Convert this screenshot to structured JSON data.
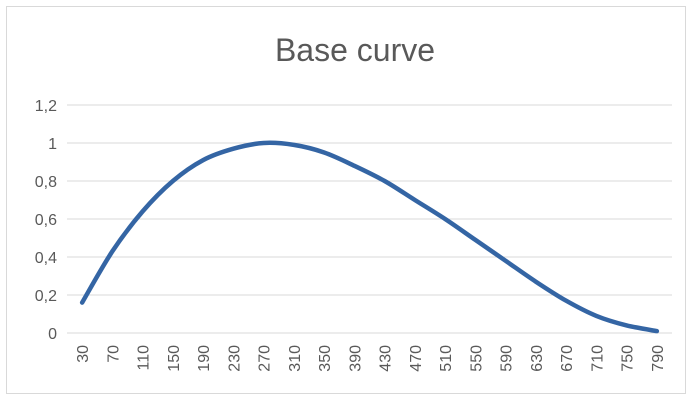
{
  "chart_data": {
    "type": "line",
    "title": "Base curve",
    "xlabel": "",
    "ylabel": "",
    "ylim": [
      0,
      1.2
    ],
    "yticks": [
      "0",
      "0,2",
      "0,4",
      "0,6",
      "0,8",
      "1",
      "1,2"
    ],
    "xticks": [
      "30",
      "70",
      "110",
      "150",
      "190",
      "230",
      "270",
      "310",
      "350",
      "390",
      "430",
      "470",
      "510",
      "550",
      "590",
      "630",
      "670",
      "710",
      "750",
      "790"
    ],
    "grid": "horizontal",
    "legend": "none",
    "series_color": "#3465a4",
    "series": [
      {
        "x": [
          30,
          70,
          110,
          150,
          190,
          230,
          270,
          310,
          350,
          390,
          430,
          470,
          510,
          550,
          590,
          630,
          670,
          710,
          750,
          790
        ],
        "values": [
          0.16,
          0.43,
          0.64,
          0.8,
          0.91,
          0.97,
          1.0,
          0.99,
          0.95,
          0.88,
          0.8,
          0.7,
          0.6,
          0.49,
          0.38,
          0.27,
          0.17,
          0.09,
          0.04,
          0.01
        ]
      }
    ]
  }
}
